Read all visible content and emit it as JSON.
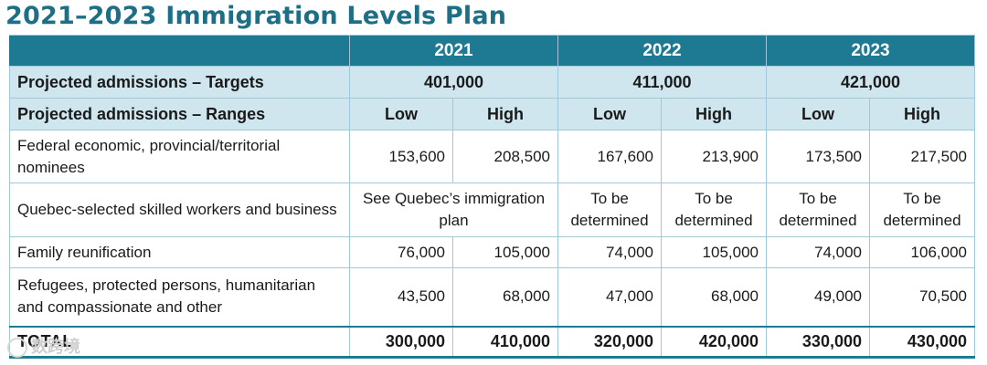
{
  "title": "2021–2023 Immigration Levels Plan",
  "years": [
    "2021",
    "2022",
    "2023"
  ],
  "targets": {
    "label": "Projected admissions – Targets",
    "values": [
      "401,000",
      "411,000",
      "421,000"
    ]
  },
  "ranges": {
    "label": "Projected admissions – Ranges",
    "low": "Low",
    "high": "High"
  },
  "rows": [
    {
      "label": "Federal economic, provincial/territorial nominees",
      "values": [
        "153,600",
        "208,500",
        "167,600",
        "213,900",
        "173,500",
        "217,500"
      ]
    },
    {
      "label": "Quebec-selected skilled workers and business",
      "y2021": "See Quebec’s immigration plan",
      "values": [
        "To be determined",
        "To be determined",
        "To be determined",
        "To be determined"
      ]
    },
    {
      "label": "Family reunification",
      "values": [
        "76,000",
        "105,000",
        "74,000",
        "105,000",
        "74,000",
        "106,000"
      ]
    },
    {
      "label": "Refugees, protected persons, humanitarian and compassionate and other",
      "values": [
        "43,500",
        "68,000",
        "47,000",
        "68,000",
        "49,000",
        "70,500"
      ]
    }
  ],
  "total": {
    "label": "TOTAL",
    "values": [
      "300,000",
      "410,000",
      "320,000",
      "420,000",
      "330,000",
      "430,000"
    ]
  },
  "watermark": "数跨境",
  "colors": {
    "header": "#1e7a93",
    "subheader": "#cfe6ee",
    "title": "#1d6f86"
  }
}
